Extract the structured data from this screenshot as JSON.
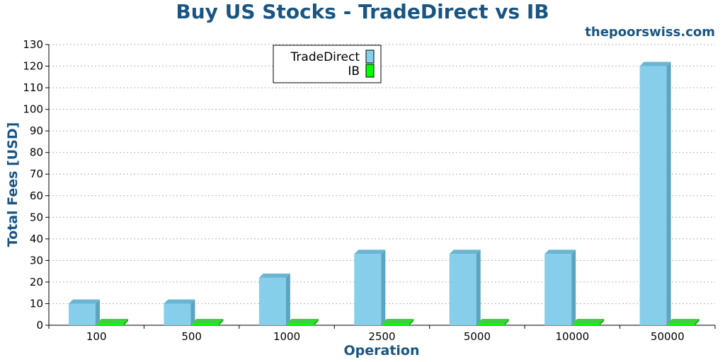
{
  "header": {
    "title": "Buy US Stocks - TradeDirect vs IB",
    "site": "thepoorswiss.com"
  },
  "chart_data": {
    "type": "bar",
    "title": "Buy US Stocks - TradeDirect vs IB",
    "xlabel": "Operation",
    "ylabel": "Total Fees [USD]",
    "categories": [
      "100",
      "500",
      "1000",
      "2500",
      "5000",
      "10000",
      "50000"
    ],
    "series": [
      {
        "name": "TradeDirect",
        "color": "#87ceeb",
        "values": [
          10,
          10,
          22,
          33,
          33,
          33,
          120
        ]
      },
      {
        "name": "IB",
        "color": "#00ff00",
        "values": [
          1,
          1,
          1,
          1,
          1,
          1,
          1
        ]
      }
    ],
    "ylim": [
      0,
      130
    ],
    "yticks": [
      0,
      10,
      20,
      30,
      40,
      50,
      60,
      70,
      80,
      90,
      100,
      110,
      120,
      130
    ],
    "grid": true,
    "legend_position": "top-center"
  }
}
